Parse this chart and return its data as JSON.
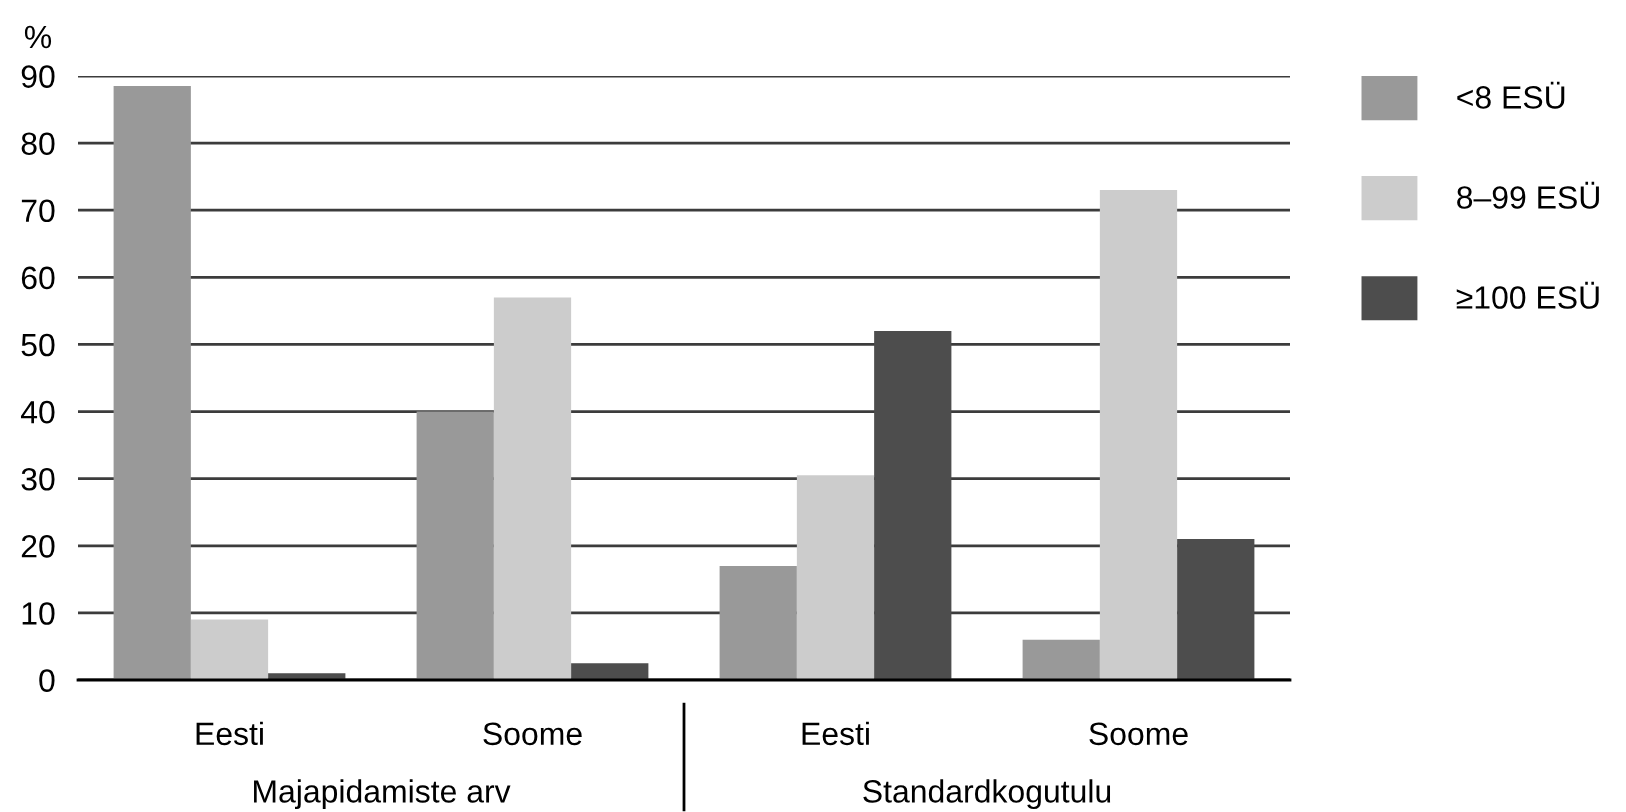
{
  "chart_data": {
    "type": "bar",
    "ylabel": "%",
    "categories": [
      "Eesti",
      "Soome",
      "Eesti",
      "Soome"
    ],
    "series": [
      {
        "name": "<8 ESÜ",
        "color": "#999999",
        "values": [
          88.5,
          40,
          17,
          6
        ]
      },
      {
        "name": "8–99 ESÜ",
        "color": "#cccccc",
        "values": [
          9,
          57,
          30.5,
          73
        ]
      },
      {
        "name": "≥100 ESÜ",
        "color": "#4d4d4d",
        "values": [
          1,
          2.5,
          52,
          21
        ]
      }
    ],
    "ylim": [
      0,
      90
    ],
    "yticks": [
      0,
      10,
      20,
      30,
      40,
      50,
      60,
      70,
      80,
      90
    ],
    "grid": "y",
    "legend": "right",
    "annotations": [
      "Majapidamiste arv",
      "Standardkogutulu"
    ]
  }
}
